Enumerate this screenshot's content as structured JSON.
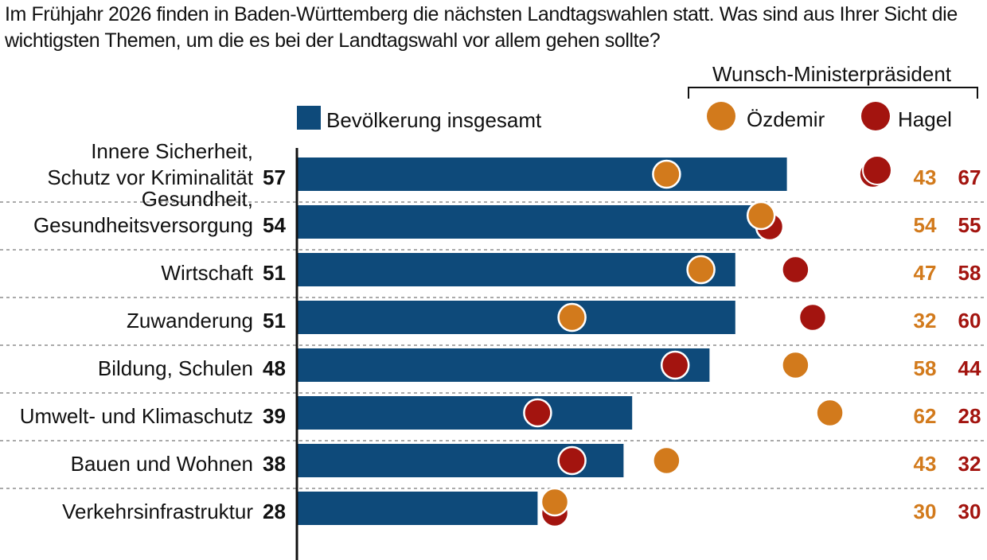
{
  "title": "Im Frühjahr 2026 finden in Baden-Württemberg die nächsten Landtagswahlen statt. Was sind aus Ihrer Sicht die wichtigsten Themen, um die es bei der Landtagswahl vor allem gehen sollte?",
  "chart_data": {
    "type": "bar",
    "orientation": "horizontal",
    "categories": [
      [
        "Innere Sicherheit,",
        "Schutz vor Kriminalität"
      ],
      [
        "Gesundheit,",
        "Gesundheitsversorgung"
      ],
      [
        "Wirtschaft"
      ],
      [
        "Zuwanderung"
      ],
      [
        "Bildung, Schulen"
      ],
      [
        "Umwelt- und Klimaschutz"
      ],
      [
        "Bauen und Wohnen"
      ],
      [
        "Verkehrsinfrastruktur"
      ]
    ],
    "series": [
      {
        "name": "Bevölkerung insgesamt",
        "values": [
          57,
          54,
          51,
          51,
          48,
          39,
          38,
          28
        ],
        "color": "#0e4a7a",
        "mark": "bar"
      },
      {
        "name": "Özdemir",
        "values": [
          43,
          54,
          47,
          32,
          58,
          62,
          43,
          30
        ],
        "color": "#d27a1c",
        "mark": "dot"
      },
      {
        "name": "Hagel",
        "values": [
          67,
          55,
          58,
          60,
          44,
          28,
          32,
          30
        ],
        "color": "#a3140f",
        "mark": "dot"
      }
    ],
    "legend_group_label": "Wunsch-Ministerpräsident",
    "legend_placement": "top-right",
    "xlim": [
      0,
      100
    ],
    "grid": false
  }
}
